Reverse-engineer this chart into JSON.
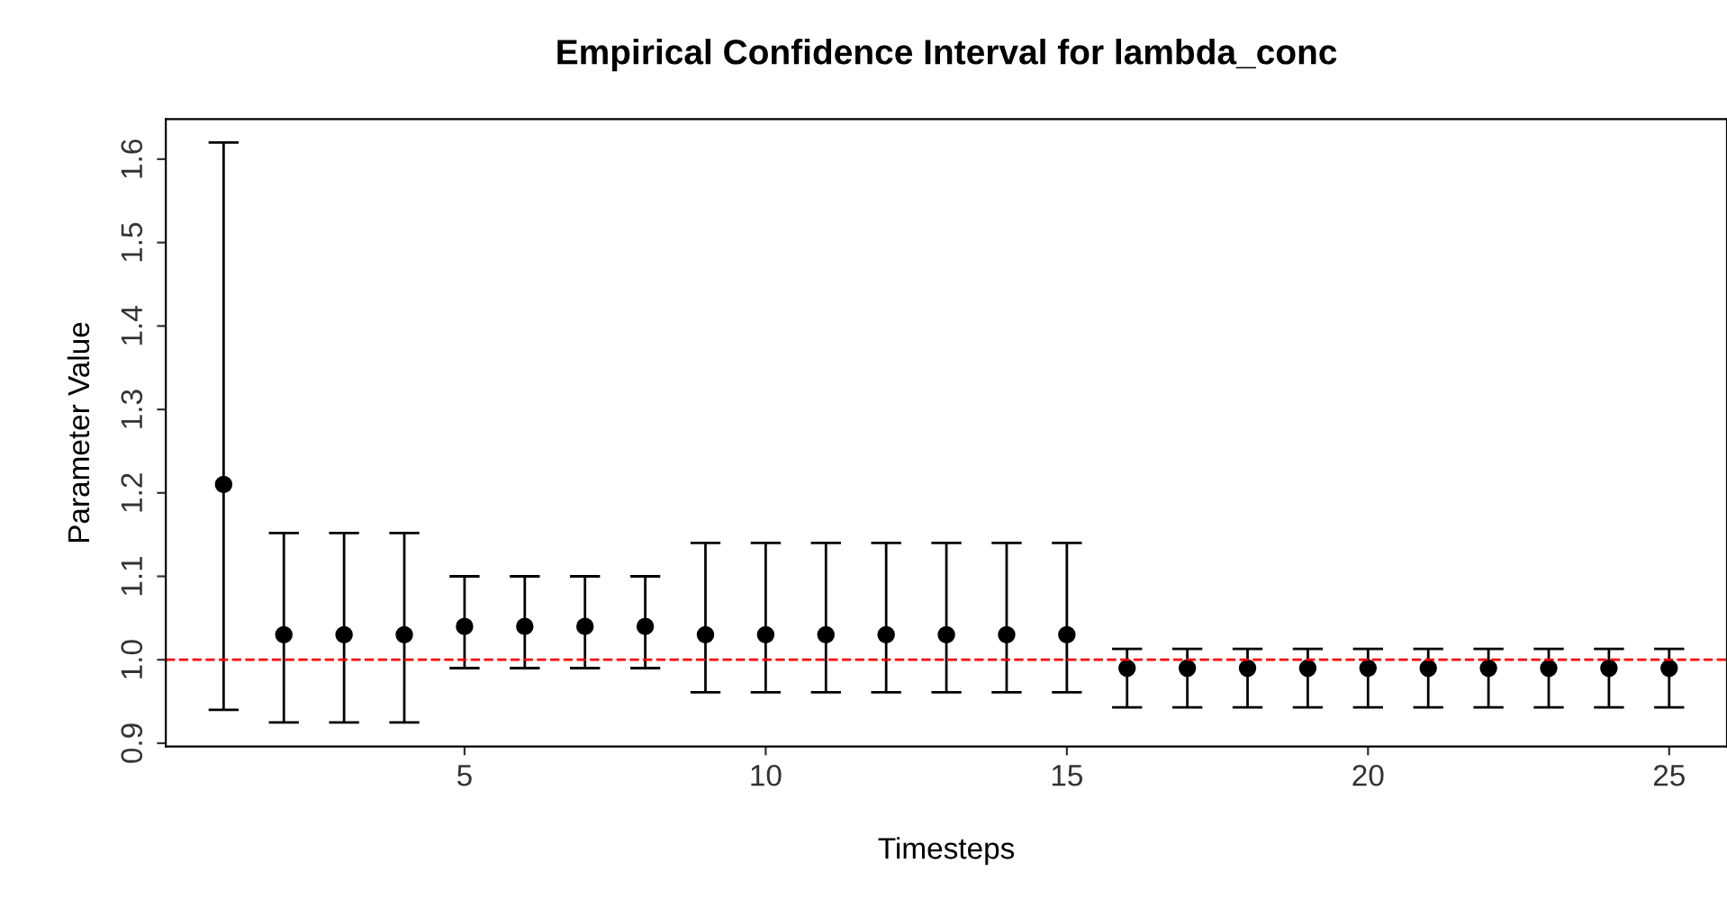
{
  "chart_data": {
    "type": "scatter",
    "title": "Empirical Confidence Interval for lambda_conc",
    "xlabel": "Timesteps",
    "ylabel": "Parameter Value",
    "x": [
      1,
      2,
      3,
      4,
      5,
      6,
      7,
      8,
      9,
      10,
      11,
      12,
      13,
      14,
      15,
      16,
      17,
      18,
      19,
      20,
      21,
      22,
      23,
      24,
      25
    ],
    "values": [
      1.21,
      1.03,
      1.03,
      1.03,
      1.04,
      1.04,
      1.04,
      1.04,
      1.03,
      1.03,
      1.03,
      1.03,
      1.03,
      1.03,
      1.03,
      0.99,
      0.99,
      0.99,
      0.99,
      0.99,
      0.99,
      0.99,
      0.99,
      0.99,
      0.99
    ],
    "errors": [
      [
        0.94,
        1.62
      ],
      [
        0.925,
        1.152
      ],
      [
        0.925,
        1.152
      ],
      [
        0.925,
        1.152
      ],
      [
        0.99,
        1.1
      ],
      [
        0.99,
        1.1
      ],
      [
        0.99,
        1.1
      ],
      [
        0.99,
        1.1
      ],
      [
        0.961,
        1.14
      ],
      [
        0.961,
        1.14
      ],
      [
        0.961,
        1.14
      ],
      [
        0.961,
        1.14
      ],
      [
        0.961,
        1.14
      ],
      [
        0.961,
        1.14
      ],
      [
        0.961,
        1.14
      ],
      [
        0.943,
        1.013
      ],
      [
        0.943,
        1.013
      ],
      [
        0.943,
        1.013
      ],
      [
        0.943,
        1.013
      ],
      [
        0.943,
        1.013
      ],
      [
        0.943,
        1.013
      ],
      [
        0.943,
        1.013
      ],
      [
        0.943,
        1.013
      ],
      [
        0.943,
        1.013
      ],
      [
        0.943,
        1.013
      ]
    ],
    "color": "#000000",
    "marker": "circle",
    "xlim": [
      0.04,
      25.96
    ],
    "xticks": [
      5,
      10,
      15,
      20,
      25
    ],
    "ylim": [
      0.896,
      1.648
    ],
    "yticks": [
      0.9,
      {
        "value": 1.0,
        "label": "1.0"
      },
      1.1,
      1.2,
      1.3,
      1.4,
      1.5,
      1.6
    ],
    "ref_lines": [
      {
        "axis": "y",
        "value": 1.0,
        "color": "#ff0000",
        "line_style": "dashed"
      }
    ],
    "grid": false,
    "legend": false
  }
}
